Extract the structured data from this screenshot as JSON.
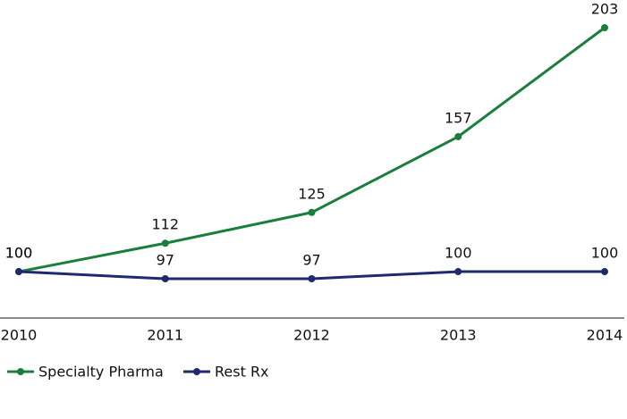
{
  "chart_data": {
    "type": "line",
    "categories": [
      "2010",
      "2011",
      "2012",
      "2013",
      "2014"
    ],
    "series": [
      {
        "name": "Specialty Pharma",
        "color": "#1a7f3c",
        "values": [
          100,
          112,
          125,
          157,
          203
        ]
      },
      {
        "name": "Rest Rx",
        "color": "#1f2a6e",
        "values": [
          100,
          97,
          97,
          100,
          100
        ]
      }
    ],
    "grid": false,
    "legend": "bottom-left"
  }
}
